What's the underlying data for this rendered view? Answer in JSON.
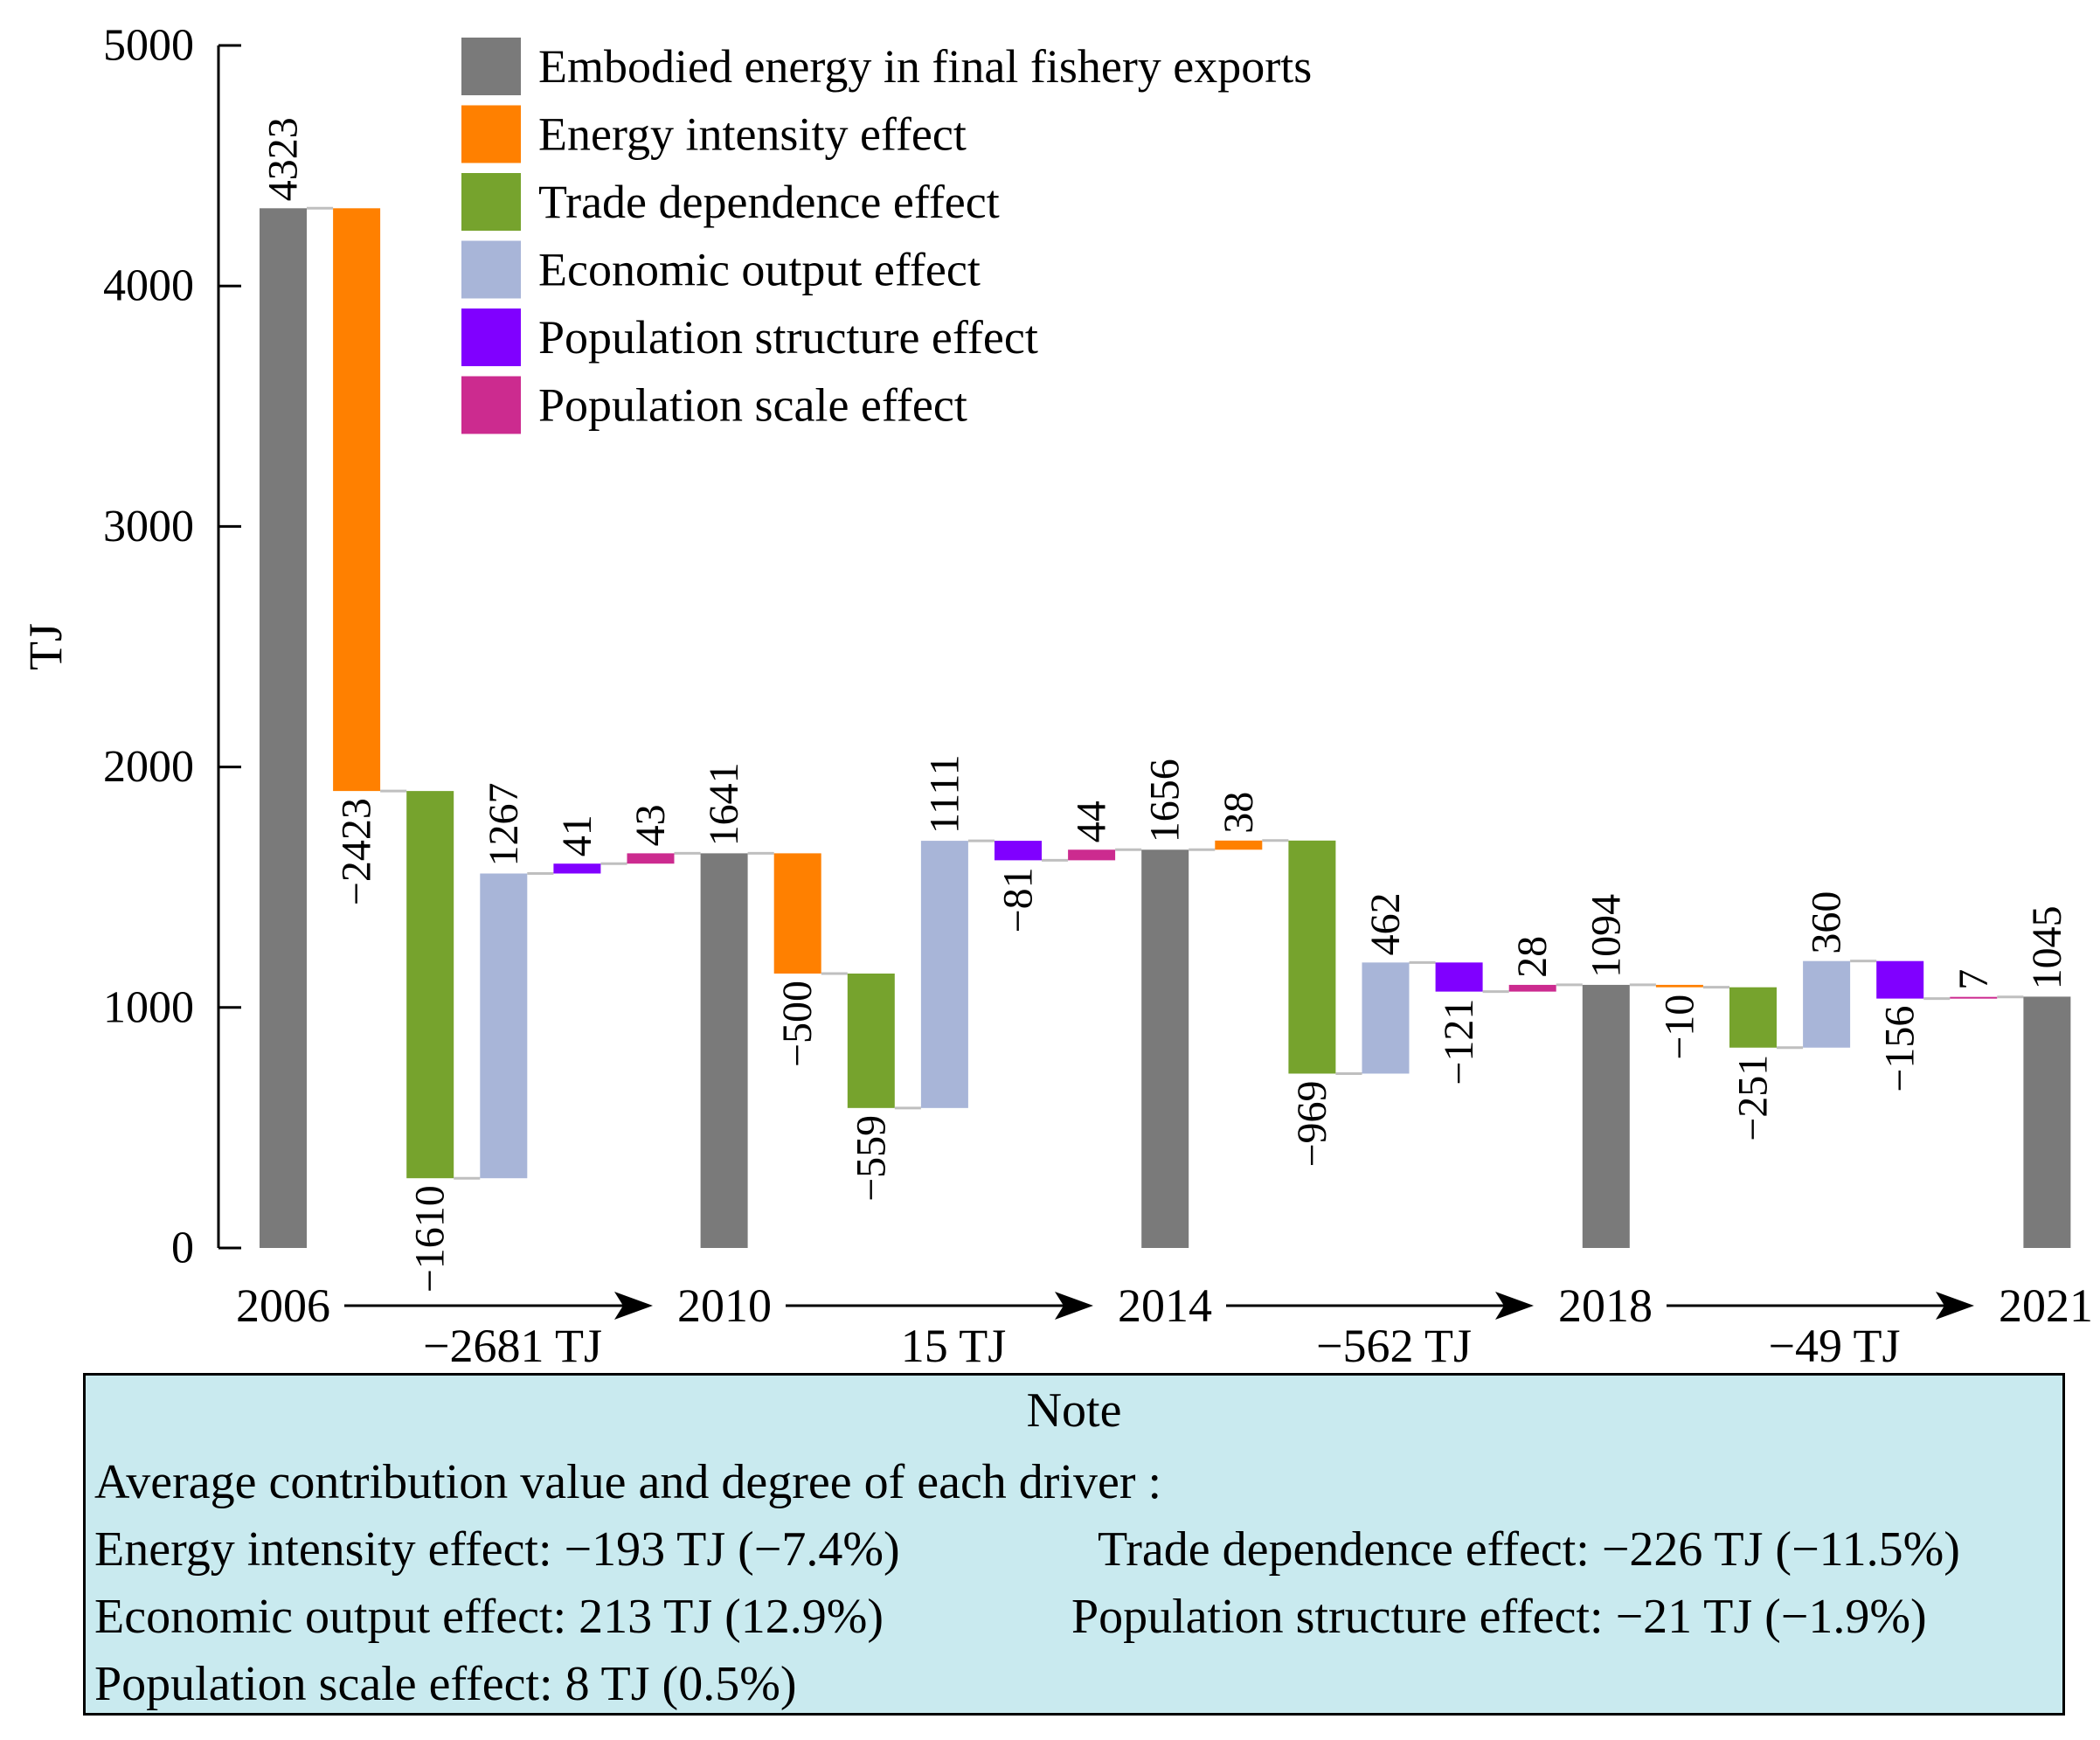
{
  "chart_data": {
    "type": "waterfall",
    "ylabel": "TJ",
    "ylim": [
      0,
      5000
    ],
    "yticks": [
      0,
      1000,
      2000,
      3000,
      4000,
      5000
    ],
    "colors": {
      "Embodied energy in final fishery exports": "#7a7a7a",
      "Energy intensity effect": "#ff8000",
      "Trade dependence effect": "#76a32d",
      "Economic output effect": "#a8b5d8",
      "Population structure effect": "#8000ff",
      "Population scale effect": "#cc2b8f",
      "connector": "#bfbfbf"
    },
    "legend": [
      "Embodied energy in final fishery exports",
      "Energy intensity effect",
      "Trade dependence effect",
      "Economic output effect",
      "Population structure effect",
      "Population scale effect"
    ],
    "bars": [
      {
        "series": "Embodied energy in final fishery exports",
        "value": 4323,
        "label": "4323"
      },
      {
        "series": "Energy intensity effect",
        "value": -2423,
        "label": "−2423"
      },
      {
        "series": "Trade dependence effect",
        "value": -1610,
        "label": "−1610"
      },
      {
        "series": "Economic output effect",
        "value": 1267,
        "label": "1267"
      },
      {
        "series": "Population structure effect",
        "value": 41,
        "label": "41"
      },
      {
        "series": "Population scale effect",
        "value": 43,
        "label": "43"
      },
      {
        "series": "Embodied energy in final fishery exports",
        "value": 1641,
        "label": "1641"
      },
      {
        "series": "Energy intensity effect",
        "value": -500,
        "label": "−500"
      },
      {
        "series": "Trade dependence effect",
        "value": -559,
        "label": "−559"
      },
      {
        "series": "Economic output effect",
        "value": 1111,
        "label": "1111"
      },
      {
        "series": "Population structure effect",
        "value": -81,
        "label": "−81"
      },
      {
        "series": "Population scale effect",
        "value": 44,
        "label": "44"
      },
      {
        "series": "Embodied energy in final fishery exports",
        "value": 1656,
        "label": "1656"
      },
      {
        "series": "Energy intensity effect",
        "value": 38,
        "label": "38"
      },
      {
        "series": "Trade dependence effect",
        "value": -969,
        "label": "−969"
      },
      {
        "series": "Economic output effect",
        "value": 462,
        "label": "462"
      },
      {
        "series": "Population structure effect",
        "value": -121,
        "label": "−121"
      },
      {
        "series": "Population scale effect",
        "value": 28,
        "label": "28"
      },
      {
        "series": "Embodied energy in final fishery exports",
        "value": 1094,
        "label": "1094"
      },
      {
        "series": "Energy intensity effect",
        "value": -10,
        "label": "−10"
      },
      {
        "series": "Trade dependence effect",
        "value": -251,
        "label": "−251"
      },
      {
        "series": "Economic output effect",
        "value": 360,
        "label": "360"
      },
      {
        "series": "Population structure effect",
        "value": -156,
        "label": "−156"
      },
      {
        "series": "Population scale effect",
        "value": 7,
        "label": "7"
      },
      {
        "series": "Embodied energy in final fishery exports",
        "value": 1045,
        "label": "1045"
      }
    ],
    "years": [
      "2006",
      "2010",
      "2014",
      "2018",
      "2021"
    ],
    "period_changes": [
      "−2681 TJ",
      "15 TJ",
      "−562 TJ",
      "−49 TJ"
    ]
  },
  "note": {
    "title": "Note",
    "intro": "Average contribution value and degree of each driver :",
    "energy_intensity": "Energy intensity effect: −193 TJ (−7.4%)",
    "trade_dependence": "Trade dependence effect: −226 TJ (−11.5%)",
    "economic_output": "Economic output effect: 213 TJ (12.9%)",
    "population_structure": "Population structure effect: −21 TJ (−1.9%)",
    "population_scale": "Population scale effect: 8 TJ (0.5%)"
  }
}
